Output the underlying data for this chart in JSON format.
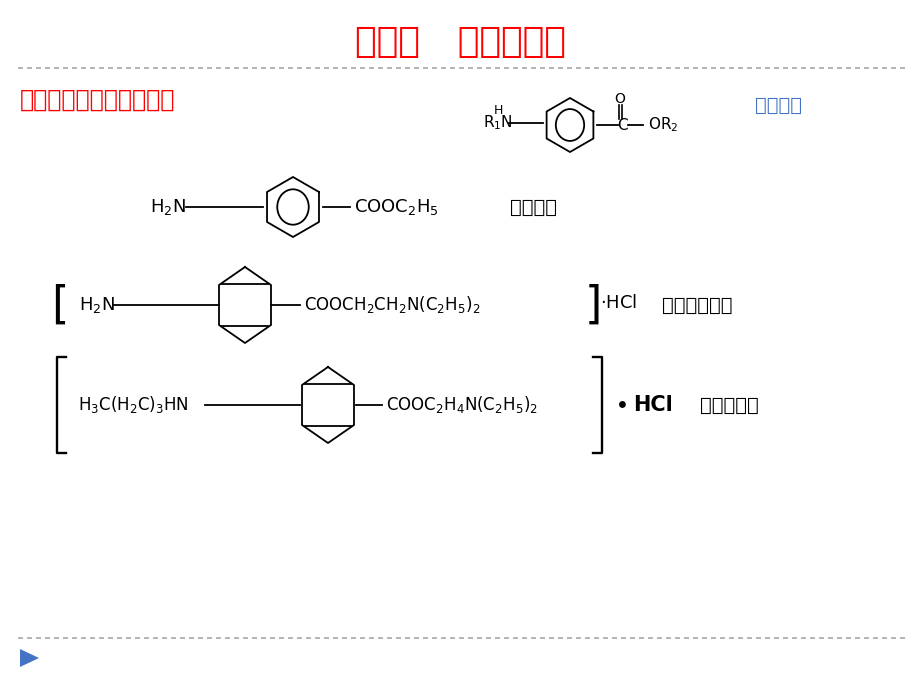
{
  "title": "第一节   芳胺类药物",
  "subtitle": "（一）对氨基苯甲酸酯类",
  "subtitle2": "基本结构",
  "compound1_name": "苯佐卡因",
  "compound2_name": "盐酸普鲁卡因",
  "compound3_name": "盐酸丁卡因",
  "title_color": "#FF0000",
  "subtitle_color": "#FF0000",
  "subtitle2_color": "#4472C4",
  "text_color": "#000000",
  "bg_color": "#FFFFFF",
  "dash_color": "#A0A0A0",
  "arrow_color": "#4472C4"
}
